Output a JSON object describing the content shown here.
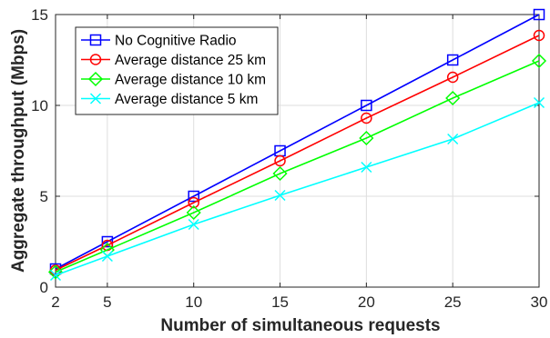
{
  "chart_data": {
    "type": "line",
    "xlabel": "Number of simultaneous requests",
    "ylabel": "Aggregate throughput (Mbps)",
    "x": [
      2,
      5,
      10,
      15,
      20,
      25,
      30
    ],
    "x_ticks": [
      "2",
      "5",
      "10",
      "15",
      "20",
      "25",
      "30"
    ],
    "ylim": [
      0,
      15
    ],
    "y_ticks": [
      "0",
      "5",
      "10",
      "15"
    ],
    "grid": true,
    "legend_position": "top-left",
    "series": [
      {
        "name": "No Cognitive Radio",
        "color": "#0000ff",
        "marker": "square",
        "values": [
          1.0,
          2.5,
          5.0,
          7.5,
          10.0,
          12.5,
          15.0
        ]
      },
      {
        "name": "Average distance 25 km",
        "color": "#ff0000",
        "marker": "circle",
        "values": [
          0.93,
          2.3,
          4.65,
          6.95,
          9.3,
          11.55,
          13.85
        ]
      },
      {
        "name": "Average distance 10 km",
        "color": "#00ff00",
        "marker": "diamond",
        "values": [
          0.83,
          2.05,
          4.1,
          6.25,
          8.2,
          10.4,
          12.45
        ]
      },
      {
        "name": "Average distance 5 km",
        "color": "#00ffff",
        "marker": "x",
        "values": [
          0.65,
          1.7,
          3.45,
          5.05,
          6.6,
          8.15,
          10.15
        ]
      }
    ]
  }
}
